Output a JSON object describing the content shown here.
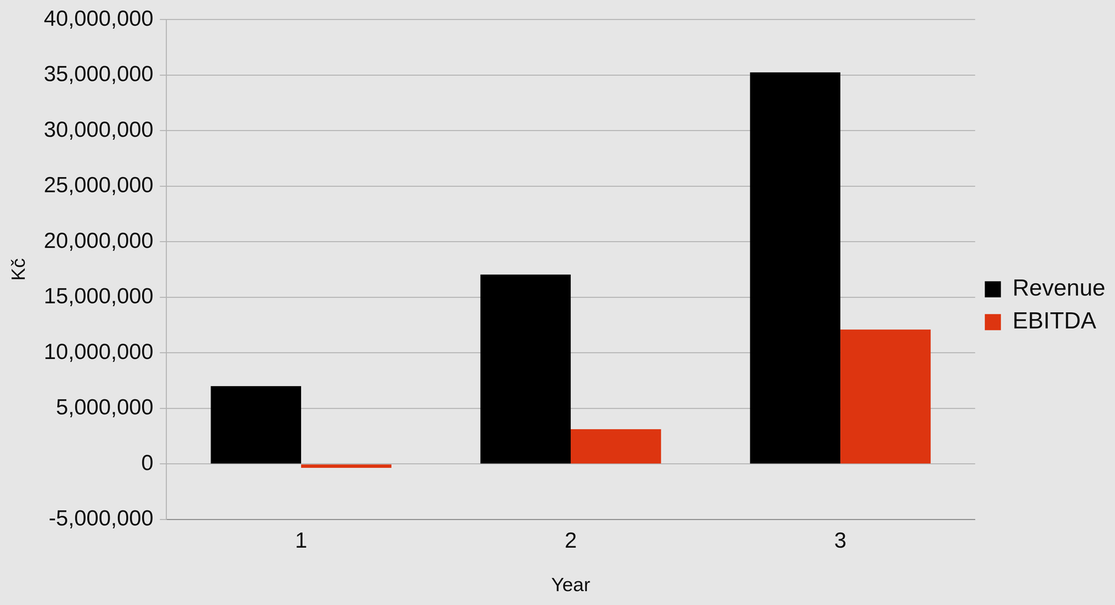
{
  "chart_data": {
    "type": "bar",
    "categories": [
      "1",
      "2",
      "3"
    ],
    "series": [
      {
        "name": "Revenue",
        "color": "#000000",
        "values": [
          7000000,
          17050000,
          35250000
        ]
      },
      {
        "name": "EBITDA",
        "color": "#dd3510",
        "values": [
          -350000,
          3130000,
          12100000
        ]
      }
    ],
    "x_label": "Year",
    "y_label": "Kč",
    "ylim": [
      -5000000,
      40000000
    ],
    "yticks": [
      {
        "value": -5000000,
        "label": "-5,000,000"
      },
      0,
      {
        "value": 5000000,
        "label": "5,000,000"
      },
      {
        "value": 10000000,
        "label": "10,000,000"
      },
      {
        "value": 15000000,
        "label": "15,000,000"
      },
      {
        "value": 20000000,
        "label": "20,000,000"
      },
      {
        "value": 25000000,
        "label": "25,000,000"
      },
      {
        "value": 30000000,
        "label": "30,000,000"
      },
      {
        "value": 35000000,
        "label": "35,000,000"
      },
      {
        "value": 40000000,
        "label": "40,000,000"
      }
    ],
    "grid": true,
    "legend": "right"
  }
}
